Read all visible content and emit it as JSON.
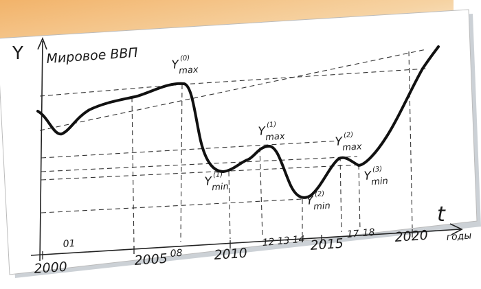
{
  "axis": {
    "y_symbol": "Y",
    "title": "Мировое ВВП",
    "x_symbol": "t",
    "x_unit": "годы"
  },
  "annotations": [
    {
      "base": "Y",
      "sub": "max",
      "sup": "(0)"
    },
    {
      "base": "Y",
      "sub": "min",
      "sup": "(1)"
    },
    {
      "base": "Y",
      "sub": "max",
      "sup": "(1)"
    },
    {
      "base": "Y",
      "sub": "min",
      "sup": "(2)"
    },
    {
      "base": "Y",
      "sub": "max",
      "sup": "(2)"
    },
    {
      "base": "Y",
      "sub": "min",
      "sup": "(3)"
    }
  ],
  "year_labels": [
    "2000",
    "2005",
    "2010",
    "2015",
    "2020"
  ],
  "short_year_labels": [
    "01",
    "08",
    "12",
    "13",
    "14",
    "17",
    "18"
  ]
}
